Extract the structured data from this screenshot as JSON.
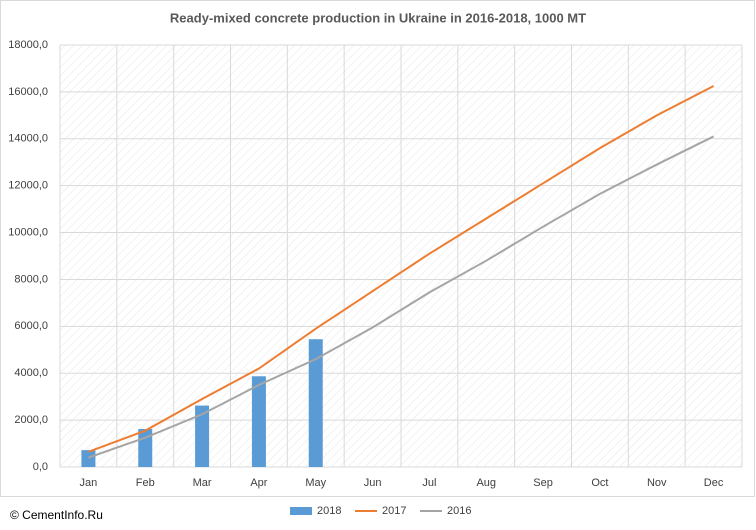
{
  "chart_data": {
    "type": "combo",
    "title": "Ready-mixed concrete production in Ukraine in 2016-2018,  1000  MT",
    "footer": "© CementInfo.Ru",
    "categories": [
      "Jan",
      "Feb",
      "Mar",
      "Apr",
      "May",
      "Jun",
      "Jul",
      "Aug",
      "Sep",
      "Oct",
      "Nov",
      "Dec"
    ],
    "series": [
      {
        "name": "2018",
        "type": "bar",
        "color": "#5b9bd5",
        "values": [
          720,
          1620,
          2620,
          3870,
          5450,
          null,
          null,
          null,
          null,
          null,
          null,
          null
        ]
      },
      {
        "name": "2017",
        "type": "line",
        "color": "#ed7d31",
        "values": [
          650,
          1550,
          2900,
          4200,
          5900,
          7500,
          9100,
          10600,
          12100,
          13600,
          15000,
          16250
        ]
      },
      {
        "name": "2016",
        "type": "line",
        "color": "#a5a5a5",
        "values": [
          400,
          1250,
          2250,
          3500,
          4600,
          5950,
          7450,
          8800,
          10250,
          11650,
          12900,
          14100
        ]
      }
    ],
    "ylim": [
      0,
      18000
    ],
    "yticks": [
      {
        "value": 0,
        "label": "0,0"
      },
      {
        "value": 2000,
        "label": "2000,0"
      },
      {
        "value": 4000,
        "label": "4000,0"
      },
      {
        "value": 6000,
        "label": "6000,0"
      },
      {
        "value": 8000,
        "label": "8000,0"
      },
      {
        "value": 10000,
        "label": "10000,0"
      },
      {
        "value": 12000,
        "label": "12000,0"
      },
      {
        "value": 14000,
        "label": "14000,0"
      },
      {
        "value": 16000,
        "label": "16000,0"
      },
      {
        "value": 18000,
        "label": "18000,0"
      }
    ],
    "grid": true,
    "legend": "bottom"
  }
}
